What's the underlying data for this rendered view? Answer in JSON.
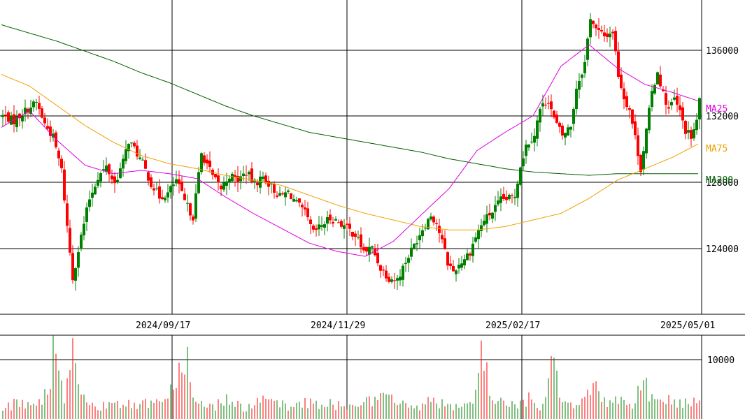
{
  "chart_data": {
    "type": "candlestick",
    "price_axis": {
      "ylim": [
        119500,
        138500
      ],
      "ticks": [
        124000,
        128000,
        132000,
        136000
      ],
      "tick_labels": [
        "124000",
        "128000",
        "132000",
        "136000"
      ]
    },
    "date_axis": {
      "tick_labels": [
        "2024/09/17",
        "2024/11/29",
        "2025/02/17",
        "2025/05/01"
      ]
    },
    "volume_axis": {
      "ylim": [
        0,
        11000
      ],
      "ticks": [
        10000
      ],
      "tick_labels": [
        "10000"
      ]
    },
    "colors": {
      "up": "#008000",
      "down": "#ff0000",
      "ma25": "#e000e0",
      "ma75": "#f0a000",
      "ma200": "#006000",
      "grid": "#000000"
    },
    "legend": {
      "ma25": "MA25",
      "ma75": "MA75",
      "ma200": "MA200"
    },
    "ma25_anchors": [
      [
        0,
        130800
      ],
      [
        20,
        131800
      ],
      [
        40,
        130000
      ],
      [
        60,
        128500
      ],
      [
        80,
        128000
      ],
      [
        100,
        128200
      ],
      [
        120,
        128000
      ],
      [
        140,
        127700
      ],
      [
        160,
        126600
      ],
      [
        180,
        125600
      ],
      [
        200,
        124700
      ],
      [
        220,
        123800
      ],
      [
        240,
        123300
      ],
      [
        260,
        123000
      ],
      [
        280,
        123900
      ],
      [
        300,
        125500
      ],
      [
        320,
        127100
      ],
      [
        340,
        129400
      ],
      [
        360,
        130500
      ],
      [
        380,
        131500
      ],
      [
        400,
        134500
      ],
      [
        420,
        135800
      ],
      [
        440,
        134400
      ],
      [
        460,
        133400
      ],
      [
        480,
        132900
      ],
      [
        498,
        132400
      ]
    ],
    "ma75_anchors": [
      [
        0,
        134000
      ],
      [
        20,
        133300
      ],
      [
        40,
        132100
      ],
      [
        60,
        130900
      ],
      [
        80,
        129900
      ],
      [
        100,
        129100
      ],
      [
        120,
        128600
      ],
      [
        140,
        128300
      ],
      [
        160,
        127900
      ],
      [
        180,
        127600
      ],
      [
        200,
        127300
      ],
      [
        220,
        126700
      ],
      [
        240,
        126100
      ],
      [
        260,
        125600
      ],
      [
        280,
        125200
      ],
      [
        300,
        124800
      ],
      [
        320,
        124600
      ],
      [
        340,
        124600
      ],
      [
        360,
        124800
      ],
      [
        380,
        125200
      ],
      [
        400,
        125600
      ],
      [
        420,
        126500
      ],
      [
        440,
        127600
      ],
      [
        460,
        128300
      ],
      [
        480,
        129000
      ],
      [
        498,
        129800
      ]
    ],
    "ma200_anchors": [
      [
        0,
        137000
      ],
      [
        20,
        136500
      ],
      [
        40,
        136000
      ],
      [
        60,
        135400
      ],
      [
        80,
        134800
      ],
      [
        100,
        134100
      ],
      [
        120,
        133500
      ],
      [
        140,
        132800
      ],
      [
        160,
        132100
      ],
      [
        180,
        131500
      ],
      [
        200,
        131000
      ],
      [
        220,
        130500
      ],
      [
        240,
        130200
      ],
      [
        260,
        129900
      ],
      [
        280,
        129600
      ],
      [
        300,
        129300
      ],
      [
        320,
        128900
      ],
      [
        340,
        128600
      ],
      [
        360,
        128300
      ],
      [
        380,
        128100
      ],
      [
        400,
        128000
      ],
      [
        420,
        127900
      ],
      [
        440,
        128000
      ],
      [
        460,
        128000
      ],
      [
        480,
        128000
      ],
      [
        498,
        128000
      ]
    ],
    "close_anchors": [
      [
        0,
        131500
      ],
      [
        8,
        131200
      ],
      [
        16,
        131800
      ],
      [
        24,
        132300
      ],
      [
        30,
        131000
      ],
      [
        36,
        130200
      ],
      [
        42,
        128200
      ],
      [
        46,
        124800
      ],
      [
        50,
        121700
      ],
      [
        56,
        124200
      ],
      [
        62,
        126500
      ],
      [
        68,
        127800
      ],
      [
        74,
        128400
      ],
      [
        80,
        127400
      ],
      [
        86,
        128700
      ],
      [
        90,
        130000
      ],
      [
        94,
        129500
      ],
      [
        100,
        128600
      ],
      [
        106,
        127400
      ],
      [
        112,
        126600
      ],
      [
        118,
        126800
      ],
      [
        124,
        127600
      ],
      [
        130,
        126300
      ],
      [
        136,
        125400
      ],
      [
        142,
        129200
      ],
      [
        146,
        128600
      ],
      [
        150,
        127800
      ],
      [
        156,
        127100
      ],
      [
        162,
        127900
      ],
      [
        168,
        127600
      ],
      [
        174,
        128100
      ],
      [
        180,
        127400
      ],
      [
        186,
        127800
      ],
      [
        192,
        127200
      ],
      [
        198,
        126600
      ],
      [
        204,
        126900
      ],
      [
        210,
        126200
      ],
      [
        216,
        125600
      ],
      [
        222,
        124400
      ],
      [
        228,
        124900
      ],
      [
        234,
        125300
      ],
      [
        240,
        125100
      ],
      [
        246,
        124700
      ],
      [
        252,
        124300
      ],
      [
        258,
        123300
      ],
      [
        264,
        123500
      ],
      [
        270,
        122300
      ],
      [
        276,
        121700
      ],
      [
        282,
        121600
      ],
      [
        288,
        122700
      ],
      [
        294,
        123700
      ],
      [
        300,
        124700
      ],
      [
        306,
        125500
      ],
      [
        310,
        125000
      ],
      [
        314,
        123900
      ],
      [
        318,
        122600
      ],
      [
        322,
        122100
      ],
      [
        328,
        122700
      ],
      [
        334,
        123300
      ],
      [
        338,
        124200
      ],
      [
        344,
        125200
      ],
      [
        350,
        125700
      ],
      [
        356,
        126400
      ],
      [
        362,
        126500
      ],
      [
        366,
        126700
      ],
      [
        370,
        128500
      ],
      [
        374,
        129700
      ],
      [
        380,
        130400
      ],
      [
        384,
        131900
      ],
      [
        390,
        132500
      ],
      [
        394,
        131300
      ],
      [
        400,
        130300
      ],
      [
        406,
        130900
      ],
      [
        410,
        133200
      ],
      [
        416,
        134700
      ],
      [
        420,
        137500
      ],
      [
        424,
        136700
      ],
      [
        430,
        136300
      ],
      [
        436,
        136600
      ],
      [
        440,
        134000
      ],
      [
        444,
        132600
      ],
      [
        448,
        131900
      ],
      [
        452,
        130200
      ],
      [
        456,
        128300
      ],
      [
        460,
        130600
      ],
      [
        464,
        132900
      ],
      [
        468,
        134200
      ],
      [
        472,
        132800
      ],
      [
        476,
        131900
      ],
      [
        480,
        132500
      ],
      [
        484,
        131700
      ],
      [
        488,
        130600
      ],
      [
        492,
        130200
      ],
      [
        496,
        131100
      ],
      [
        499,
        133200
      ]
    ],
    "volume_anchors": [
      [
        0,
        1500
      ],
      [
        10,
        2300
      ],
      [
        20,
        2000
      ],
      [
        30,
        3300
      ],
      [
        38,
        11000
      ],
      [
        43,
        2500
      ],
      [
        50,
        10300
      ],
      [
        56,
        3000
      ],
      [
        66,
        1400
      ],
      [
        80,
        3000
      ],
      [
        92,
        1800
      ],
      [
        104,
        2500
      ],
      [
        118,
        3000
      ],
      [
        130,
        10600
      ],
      [
        138,
        2500
      ],
      [
        150,
        1800
      ],
      [
        160,
        3000
      ],
      [
        172,
        1600
      ],
      [
        186,
        2500
      ],
      [
        196,
        2300
      ],
      [
        206,
        1500
      ],
      [
        216,
        2800
      ],
      [
        226,
        1800
      ],
      [
        236,
        2300
      ],
      [
        246,
        1500
      ],
      [
        256,
        3100
      ],
      [
        266,
        2500
      ],
      [
        276,
        3300
      ],
      [
        286,
        2000
      ],
      [
        296,
        1800
      ],
      [
        306,
        2900
      ],
      [
        316,
        2000
      ],
      [
        326,
        1500
      ],
      [
        336,
        2000
      ],
      [
        342,
        10600
      ],
      [
        348,
        4000
      ],
      [
        356,
        2500
      ],
      [
        366,
        2000
      ],
      [
        376,
        2800
      ],
      [
        386,
        1800
      ],
      [
        393,
        9500
      ],
      [
        400,
        3000
      ],
      [
        410,
        2000
      ],
      [
        420,
        5000
      ],
      [
        430,
        2500
      ],
      [
        440,
        3000
      ],
      [
        450,
        2000
      ],
      [
        457,
        6000
      ],
      [
        466,
        2500
      ],
      [
        476,
        2800
      ],
      [
        486,
        2000
      ],
      [
        494,
        3000
      ],
      [
        499,
        1800
      ]
    ]
  }
}
